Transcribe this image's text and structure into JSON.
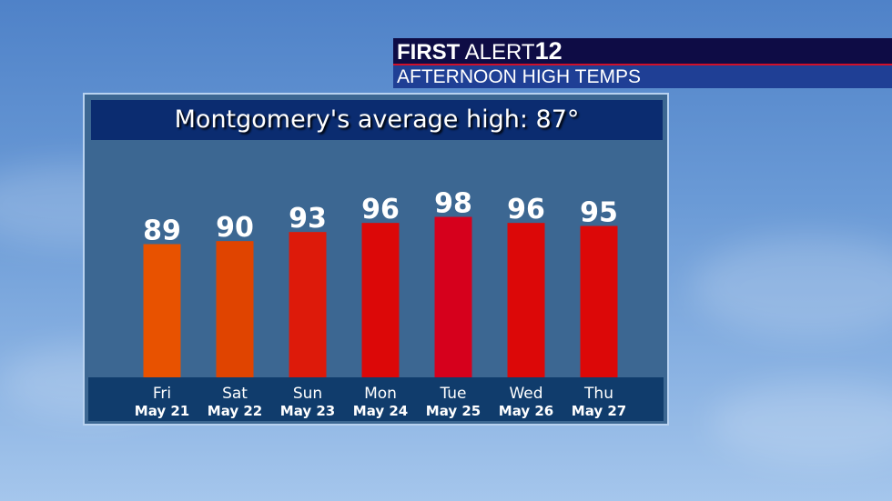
{
  "header": {
    "brand_bold": "FIRST",
    "brand_light": "ALERT",
    "brand_number": "12",
    "subtitle": "AFTERNOON HIGH TEMPS"
  },
  "colors": {
    "header_navy": "#0e0c45",
    "header_blue": "#1f3f95",
    "accent_red": "#d0102a",
    "panel": "#3c6792"
  },
  "chart_data": {
    "type": "bar",
    "title": "Montgomery's average high: 87°",
    "categories": [
      "Fri",
      "Sat",
      "Sun",
      "Mon",
      "Tue",
      "Wed",
      "Thu"
    ],
    "dates": [
      "May 21",
      "May 22",
      "May 23",
      "May 24",
      "May 25",
      "May 26",
      "May 27"
    ],
    "values": [
      89,
      90,
      93,
      96,
      98,
      96,
      95
    ],
    "bar_colors": [
      "#e85200",
      "#e04400",
      "#dd1a0a",
      "#dc0808",
      "#d6001c",
      "#dc0808",
      "#dc0808"
    ],
    "ylim": [
      45,
      100
    ],
    "grid": false,
    "xlabel": "",
    "ylabel": ""
  }
}
